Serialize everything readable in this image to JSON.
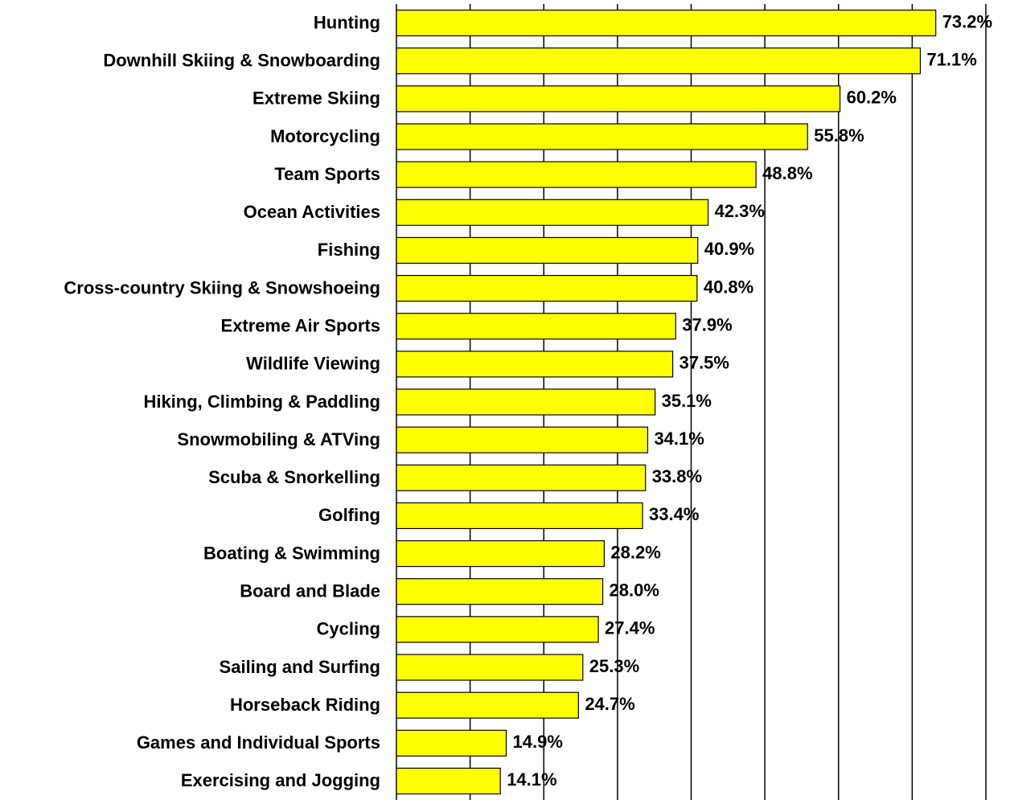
{
  "chart_data": {
    "type": "barh",
    "categories": [
      "Hunting",
      "Downhill Skiing & Snowboarding",
      "Extreme Skiing",
      "Motorcycling",
      "Team Sports",
      "Ocean Activities",
      "Fishing",
      "Cross-country Skiing & Snowshoeing",
      "Extreme Air Sports",
      "Wildlife Viewing",
      "Hiking, Climbing & Paddling",
      "Snowmobiling & ATVing",
      "Scuba & Snorkelling",
      "Golfing",
      "Boating & Swimming",
      "Board and Blade",
      "Cycling",
      "Sailing and Surfing",
      "Horseback Riding",
      "Games and Individual Sports",
      "Exercising and Jogging"
    ],
    "values": [
      73.2,
      71.1,
      60.2,
      55.8,
      48.8,
      42.3,
      40.9,
      40.8,
      37.9,
      37.5,
      35.1,
      34.1,
      33.8,
      33.4,
      28.2,
      28.0,
      27.4,
      25.3,
      24.7,
      14.9,
      14.1
    ],
    "value_labels": [
      "73.2%",
      "71.1%",
      "60.2%",
      "55.8%",
      "48.8%",
      "42.3%",
      "40.9%",
      "40.8%",
      "37.9%",
      "37.5%",
      "35.1%",
      "34.1%",
      "33.8%",
      "33.4%",
      "28.2%",
      "28.0%",
      "27.4%",
      "25.3%",
      "24.7%",
      "14.9%",
      "14.1%"
    ],
    "color": "#ffff00",
    "xlim": [
      0,
      80
    ],
    "xticks": [
      0,
      10,
      20,
      30,
      40,
      50,
      60,
      70,
      80
    ],
    "xtick_labels": false,
    "grid": true
  }
}
